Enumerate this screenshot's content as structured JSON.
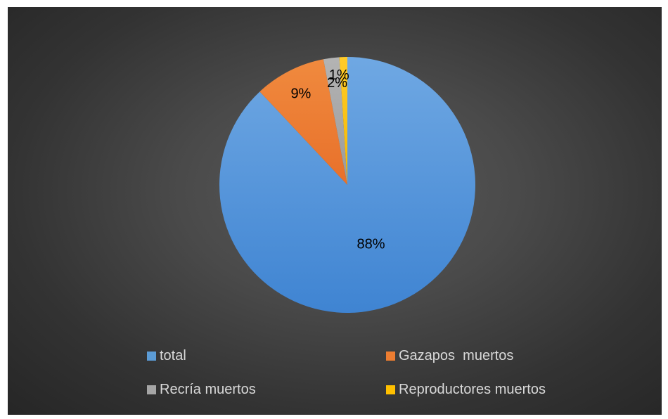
{
  "chart_data": {
    "type": "pie",
    "categories": [
      "total",
      "Gazapos  muertos",
      "Recría muertos",
      "Reproductores muertos"
    ],
    "values": [
      88,
      9,
      2,
      1
    ],
    "data_labels": [
      "88%",
      "9%",
      "2%",
      "1%"
    ],
    "colors": [
      "#4a8fd8",
      "#ed7d31",
      "#a5a5a5",
      "#ffc000"
    ],
    "start_angle_deg": 0,
    "direction": "clockwise",
    "legend_position": "bottom"
  }
}
